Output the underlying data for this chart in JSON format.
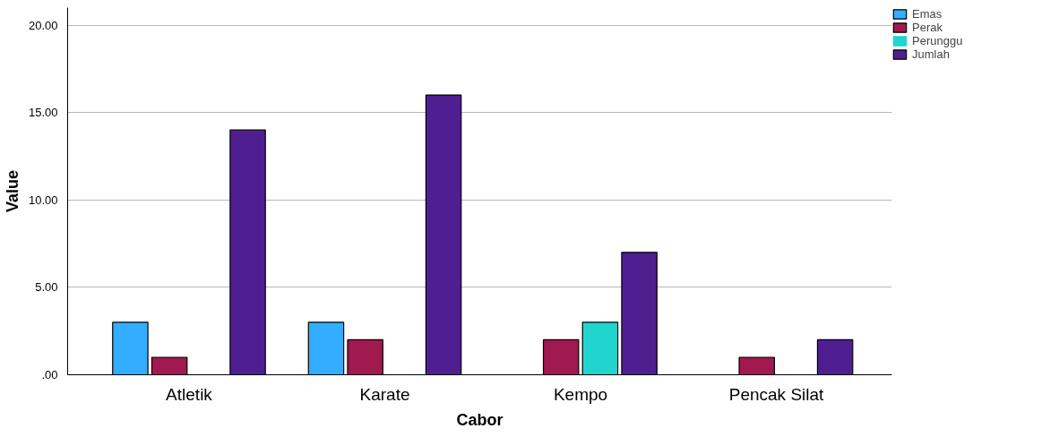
{
  "chart_data": {
    "type": "bar",
    "xlabel": "Cabor",
    "ylabel": "Value",
    "categories": [
      "Atletik",
      "Karate",
      "Kempo",
      "Pencak Silat"
    ],
    "series": [
      {
        "name": "Emas",
        "color": "#33adff",
        "values": [
          3,
          3,
          0,
          0
        ]
      },
      {
        "name": "Perak",
        "color": "#a0194f",
        "values": [
          1,
          2,
          2,
          1
        ]
      },
      {
        "name": "Perunggu",
        "color": "#21d5cf",
        "values": [
          0,
          0,
          3,
          0
        ]
      },
      {
        "name": "Jumlah",
        "color": "#4f1f91",
        "values": [
          14,
          16,
          7,
          2
        ]
      }
    ],
    "ylim": [
      0,
      21
    ],
    "yticks": [
      {
        "value": 0,
        "label": ".00"
      },
      {
        "value": 5,
        "label": "5.00"
      },
      {
        "value": 10,
        "label": "10.00"
      },
      {
        "value": 15,
        "label": "15.00"
      },
      {
        "value": 20,
        "label": "20.00"
      }
    ],
    "grid": "y",
    "legend": "top right"
  }
}
